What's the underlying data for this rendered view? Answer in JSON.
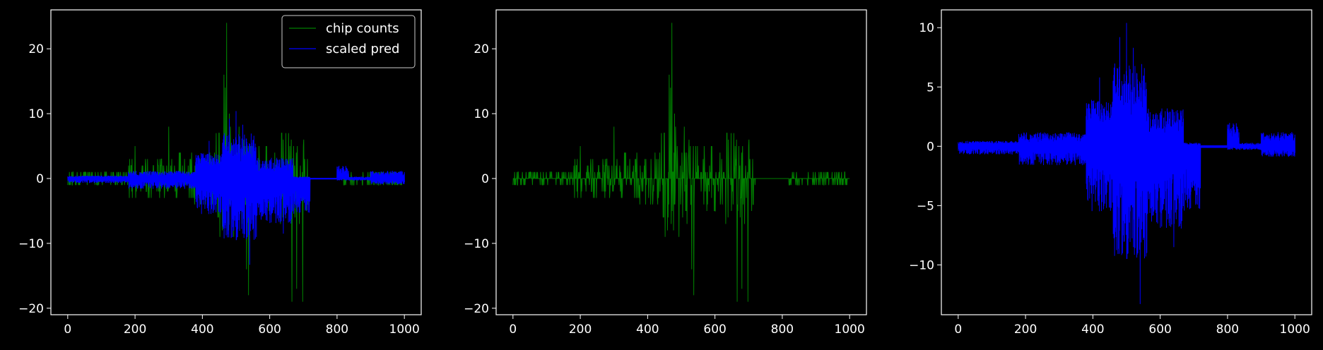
{
  "chart_data": [
    {
      "type": "line",
      "title": "",
      "xlabel": "",
      "ylabel": "",
      "xlim": [
        -50,
        1050
      ],
      "ylim": [
        -21,
        26
      ],
      "xticks": [
        0,
        200,
        400,
        600,
        800,
        1000
      ],
      "xtick_labels": [
        "0",
        "200",
        "400",
        "600",
        "800",
        "1000"
      ],
      "yticks": [
        -20,
        -10,
        0,
        10,
        20
      ],
      "ytick_labels": [
        "−20",
        "−10",
        "0",
        "10",
        "20"
      ],
      "grid": false,
      "legend": "top-right",
      "series": [
        {
          "name": "chip counts",
          "color": "#008000",
          "kind": "counts",
          "values": []
        },
        {
          "name": "scaled pred",
          "color": "#0000ff",
          "kind": "pred",
          "values": []
        }
      ]
    },
    {
      "type": "line",
      "title": "",
      "xlabel": "",
      "ylabel": "",
      "xlim": [
        -50,
        1050
      ],
      "ylim": [
        -21,
        26
      ],
      "xticks": [
        0,
        200,
        400,
        600,
        800,
        1000
      ],
      "xtick_labels": [
        "0",
        "200",
        "400",
        "600",
        "800",
        "1000"
      ],
      "yticks": [
        -20,
        -10,
        0,
        10,
        20
      ],
      "ytick_labels": [
        "−20",
        "−10",
        "0",
        "10",
        "20"
      ],
      "grid": false,
      "legend": "none",
      "series": [
        {
          "color": "#008000",
          "kind": "counts",
          "values": []
        }
      ]
    },
    {
      "type": "line",
      "title": "",
      "xlabel": "",
      "ylabel": "",
      "xlim": [
        -50,
        1050
      ],
      "ylim": [
        -14.2,
        11.5
      ],
      "xticks": [
        0,
        200,
        400,
        600,
        800,
        1000
      ],
      "xtick_labels": [
        "0",
        "200",
        "400",
        "600",
        "800",
        "1000"
      ],
      "yticks": [
        -10,
        -5,
        0,
        5,
        10
      ],
      "ytick_labels": [
        "−10",
        "−5",
        "0",
        "5",
        "10"
      ],
      "grid": false,
      "legend": "none",
      "series": [
        {
          "color": "#0000ff",
          "kind": "pred",
          "values": []
        }
      ]
    }
  ]
}
